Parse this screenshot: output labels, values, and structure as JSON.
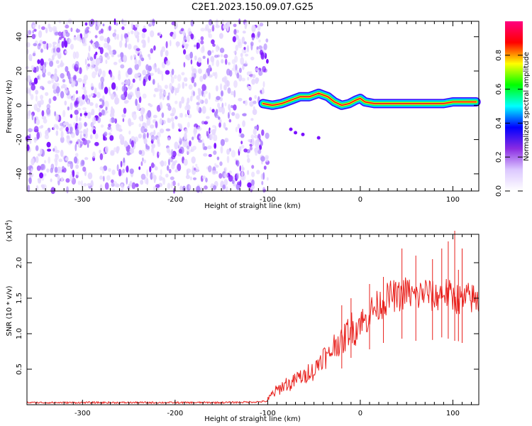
{
  "title": "C2E1.2023.150.09.07.G25",
  "chart_data": [
    {
      "type": "heatmap",
      "xlabel": "Height of straight line (km)",
      "ylabel": "Frequency (Hz)",
      "xlim": [
        -360,
        128
      ],
      "ylim": [
        -50,
        49
      ],
      "xticks": [
        -300,
        -200,
        -100,
        0,
        100
      ],
      "yticks": [
        -40,
        -20,
        0,
        20,
        40
      ],
      "colorbar": {
        "label": "Normalized spectral amplitude",
        "range": [
          0.0,
          1.0
        ],
        "ticks": [
          "0.0",
          "0.2",
          "0.4",
          "0.6",
          "0.8"
        ],
        "colors": [
          "#ffffff",
          "#dcc8ff",
          "#8a2be2",
          "#0000ff",
          "#00ffff",
          "#00ff00",
          "#ffff00",
          "#ff0000",
          "#ff0080"
        ]
      },
      "ridge": {
        "name": "Doppler trace",
        "x": [
          -105,
          -95,
          -85,
          -75,
          -65,
          -55,
          -45,
          -35,
          -28,
          -20,
          -12,
          -5,
          0,
          5,
          15,
          30,
          50,
          70,
          90,
          100,
          110,
          125
        ],
        "y": [
          1,
          0,
          1,
          3,
          5,
          5,
          7,
          5,
          2,
          0,
          1,
          3,
          4,
          2,
          1,
          1,
          1,
          1,
          1,
          2,
          2,
          2
        ]
      },
      "noise_region": {
        "x": [
          -360,
          -100
        ],
        "y": [
          -50,
          49
        ]
      }
    },
    {
      "type": "line",
      "xlabel": "Height of straight line (km)",
      "ylabel": "SNR (10 * v/v)",
      "scale_label": "(x10^4)",
      "xlim": [
        -360,
        128
      ],
      "ylim": [
        0,
        2.4
      ],
      "xticks": [
        -300,
        -200,
        -100,
        0,
        100
      ],
      "yticks": [
        "0.5",
        "1.0",
        "1.5",
        "2.0"
      ],
      "color": "#e8201c",
      "series": [
        {
          "x": [
            -360,
            -340,
            -300,
            -250,
            -200,
            -150,
            -110,
            -100,
            -95,
            -90,
            -85,
            -80,
            -75,
            -70,
            -65,
            -60,
            -55,
            -50,
            -45,
            -40,
            -35,
            -30,
            -25,
            -20,
            -15,
            -10,
            -5,
            0,
            5,
            10,
            15,
            20,
            25,
            30,
            35,
            40,
            45,
            50,
            55,
            60,
            65,
            70,
            75,
            80,
            85,
            90,
            95,
            100,
            105,
            110,
            115,
            120,
            128
          ],
          "values": [
            0.03,
            0.03,
            0.03,
            0.03,
            0.03,
            0.03,
            0.04,
            0.05,
            0.15,
            0.2,
            0.25,
            0.3,
            0.28,
            0.35,
            0.4,
            0.38,
            0.5,
            0.45,
            0.6,
            0.7,
            0.65,
            0.8,
            0.9,
            0.85,
            1.0,
            1.1,
            1.05,
            1.2,
            1.15,
            1.3,
            1.35,
            1.4,
            1.45,
            1.5,
            1.55,
            1.5,
            1.55,
            1.6,
            1.55,
            1.5,
            1.55,
            1.6,
            1.55,
            1.5,
            1.55,
            1.6,
            1.55,
            1.5,
            1.5,
            1.45,
            1.5,
            1.5,
            1.45
          ],
          "spikes": {
            "x": [
              -20,
              -10,
              10,
              25,
              45,
              60,
              78,
              88,
              95,
              102,
              106,
              110
            ],
            "values": [
              1.4,
              1.5,
              1.7,
              1.8,
              2.2,
              2.1,
              2.05,
              2.2,
              2.3,
              2.45,
              1.9,
              2.2
            ]
          }
        }
      ]
    }
  ]
}
